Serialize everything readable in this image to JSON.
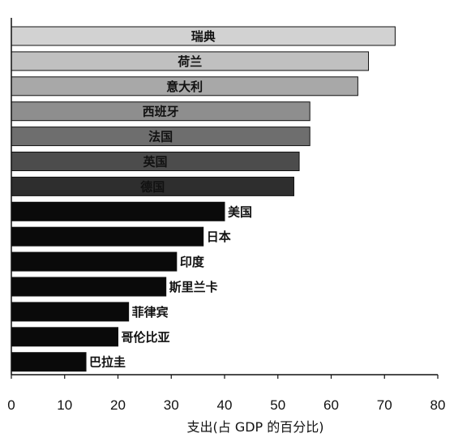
{
  "chart_data": {
    "type": "bar",
    "orientation": "horizontal",
    "categories": [
      "瑞典",
      "荷兰",
      "意大利",
      "西班牙",
      "法国",
      "英国",
      "德国",
      "美国",
      "日本",
      "印度",
      "斯里兰卡",
      "菲律宾",
      "哥伦比亚",
      "巴拉圭"
    ],
    "values": [
      72,
      67,
      65,
      56,
      56,
      54,
      53,
      40,
      36,
      31,
      29,
      22,
      20,
      14
    ],
    "bar_colors": [
      "#d2d2d2",
      "#c0c0c0",
      "#a8a8a8",
      "#8e8e8e",
      "#6e6e6e",
      "#4c4c4c",
      "#2e2e2e",
      "#0a0a0a",
      "#0a0a0a",
      "#0a0a0a",
      "#0a0a0a",
      "#0a0a0a",
      "#0a0a0a",
      "#0a0a0a"
    ],
    "label_positions": [
      "inside",
      "inside",
      "inside",
      "inside",
      "inside",
      "inside",
      "inside",
      "outside",
      "outside",
      "outside",
      "outside",
      "outside",
      "outside",
      "outside"
    ],
    "xlim": [
      0,
      80
    ],
    "xticks": [
      "0",
      "10",
      "20",
      "30",
      "40",
      "50",
      "60",
      "70",
      "80"
    ],
    "xlabel": "支出(占 GDP 的百分比)",
    "ylabel": "",
    "title": "",
    "grid": false
  }
}
